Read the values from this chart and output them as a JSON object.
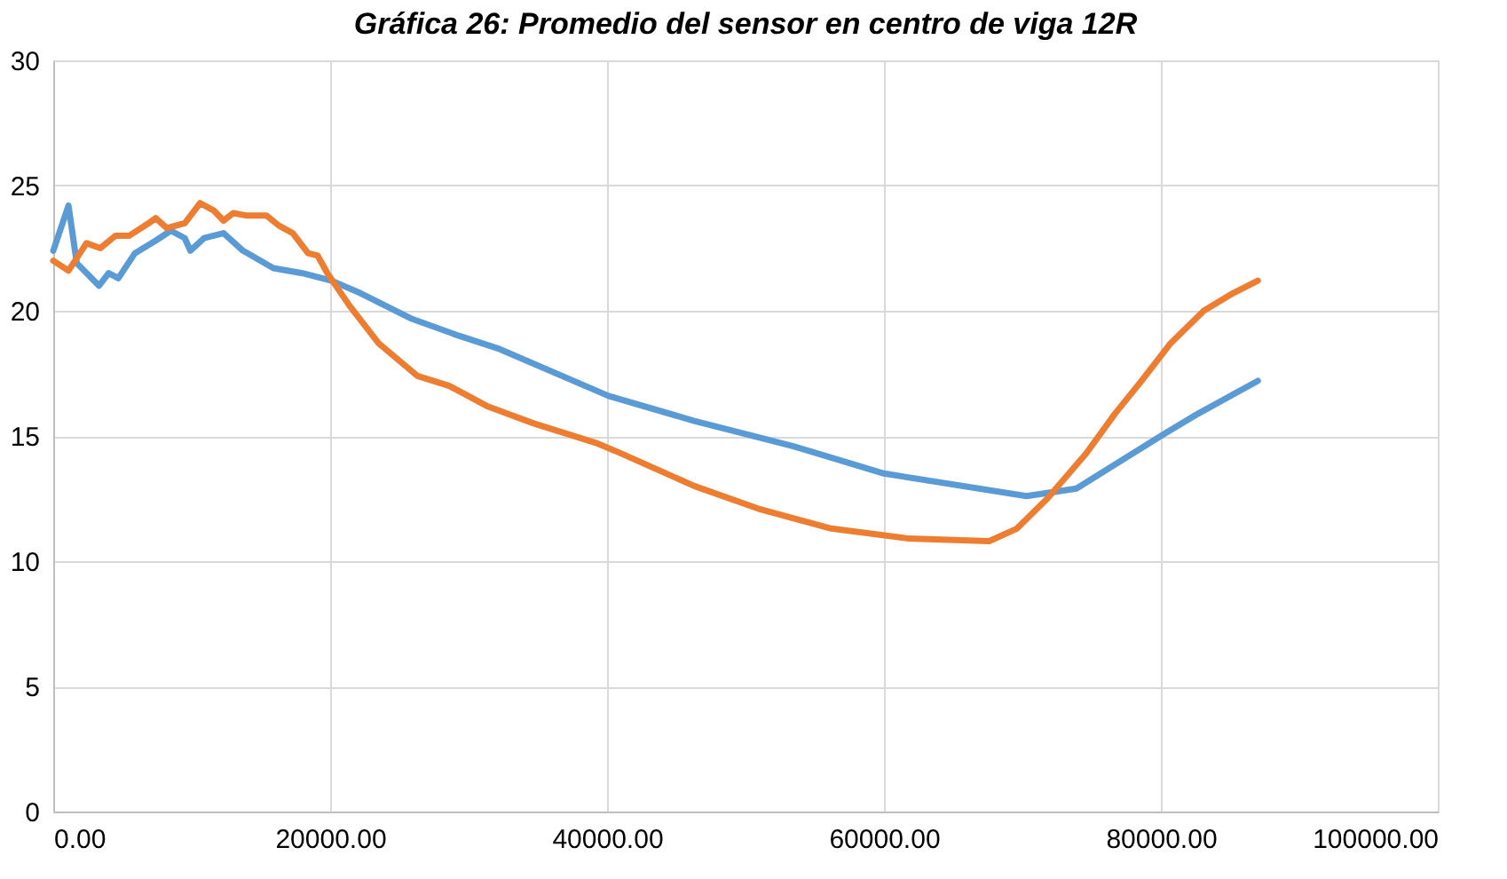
{
  "chart_data": {
    "type": "line",
    "title": "Gráfica 26: Promedio del sensor en centro de viga 12R",
    "series": [
      {
        "color": "#5b9bd5",
        "x": [
          0,
          1100,
          1700,
          3300,
          4000,
          4700,
          5900,
          7400,
          8500,
          9500,
          9900,
          10900,
          12300,
          13700,
          15900,
          18000,
          20100,
          22200,
          25800,
          29300,
          32100,
          40100,
          46300,
          53400,
          60000,
          70300,
          73900,
          80000,
          82400,
          87000
        ],
        "values": [
          22.4,
          24.2,
          21.9,
          21.0,
          21.5,
          21.3,
          22.3,
          22.8,
          23.2,
          22.9,
          22.4,
          22.9,
          23.1,
          22.4,
          21.7,
          21.5,
          21.2,
          20.7,
          19.7,
          19.0,
          18.5,
          16.6,
          15.6,
          14.6,
          13.5,
          12.6,
          12.9,
          15.0,
          15.8,
          17.2
        ]
      },
      {
        "color": "#ed7d31",
        "x": [
          0,
          1100,
          2400,
          3400,
          4500,
          5500,
          6900,
          7400,
          8200,
          9500,
          10200,
          10600,
          11600,
          12300,
          13000,
          14000,
          15400,
          16300,
          17300,
          18400,
          19100,
          19800,
          21400,
          23500,
          26300,
          28600,
          31300,
          34700,
          39300,
          40600,
          46300,
          50900,
          56200,
          61800,
          67600,
          69600,
          71800,
          74600,
          76700,
          78600,
          80700,
          83100,
          85200,
          87000
        ],
        "values": [
          22.0,
          21.6,
          22.7,
          22.5,
          23.0,
          23.0,
          23.5,
          23.7,
          23.3,
          23.5,
          24.0,
          24.3,
          24.0,
          23.6,
          23.9,
          23.8,
          23.8,
          23.4,
          23.1,
          22.3,
          22.2,
          21.5,
          20.2,
          18.7,
          17.4,
          17.0,
          16.2,
          15.5,
          14.7,
          14.4,
          13.0,
          12.1,
          11.3,
          10.9,
          10.8,
          11.3,
          12.5,
          14.3,
          15.9,
          17.2,
          18.7,
          20.0,
          20.7,
          21.2
        ]
      }
    ],
    "xlim": [
      0,
      100000
    ],
    "xticks": [
      {
        "value": 0,
        "label": "0.00"
      },
      {
        "value": 20000,
        "label": "20000.00"
      },
      {
        "value": 40000,
        "label": "40000.00"
      },
      {
        "value": 60000,
        "label": "60000.00"
      },
      {
        "value": 80000,
        "label": "80000.00"
      },
      {
        "value": 100000,
        "label": "100000.00"
      }
    ],
    "ylim": [
      0,
      30
    ],
    "yticks": [
      0,
      5,
      10,
      15,
      20,
      25,
      30
    ],
    "grid": true
  }
}
